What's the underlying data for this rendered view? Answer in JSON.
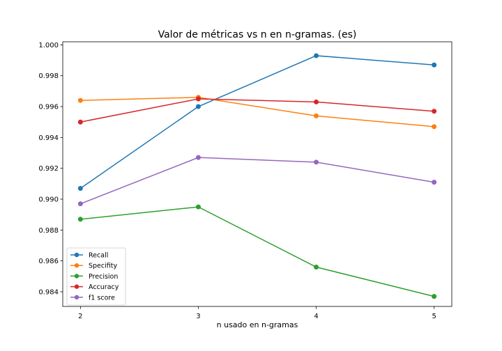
{
  "chart_data": {
    "type": "line",
    "title": "Valor de métricas vs n en n-gramas. (es)",
    "xlabel": "n usado en n-gramas",
    "ylabel": "",
    "x": [
      2,
      3,
      4,
      5
    ],
    "xticks": [
      "2",
      "3",
      "4",
      "5"
    ],
    "xlim": [
      1.85,
      5.15
    ],
    "ylim": [
      0.98305,
      1.0002
    ],
    "yticks": [
      "0.984",
      "0.986",
      "0.988",
      "0.990",
      "0.992",
      "0.994",
      "0.996",
      "0.998",
      "1.000"
    ],
    "yticks_values": [
      0.984,
      0.986,
      0.988,
      0.99,
      0.992,
      0.994,
      0.996,
      0.998,
      1.0
    ],
    "grid": false,
    "legend_position": "lower-left",
    "series": [
      {
        "name": "Recall",
        "color": "#1f77b4",
        "values": [
          0.9907,
          0.996,
          0.9993,
          0.9987
        ]
      },
      {
        "name": "Specifity",
        "color": "#ff7f0e",
        "values": [
          0.9964,
          0.9966,
          0.9954,
          0.9947
        ]
      },
      {
        "name": "Precision",
        "color": "#2ca02c",
        "values": [
          0.9887,
          0.9895,
          0.9856,
          0.9837
        ]
      },
      {
        "name": "Accuracy",
        "color": "#d62728",
        "values": [
          0.995,
          0.9965,
          0.9963,
          0.9957
        ]
      },
      {
        "name": "f1 score",
        "color": "#9467bd",
        "values": [
          0.9897,
          0.9927,
          0.9924,
          0.9911
        ]
      }
    ]
  }
}
